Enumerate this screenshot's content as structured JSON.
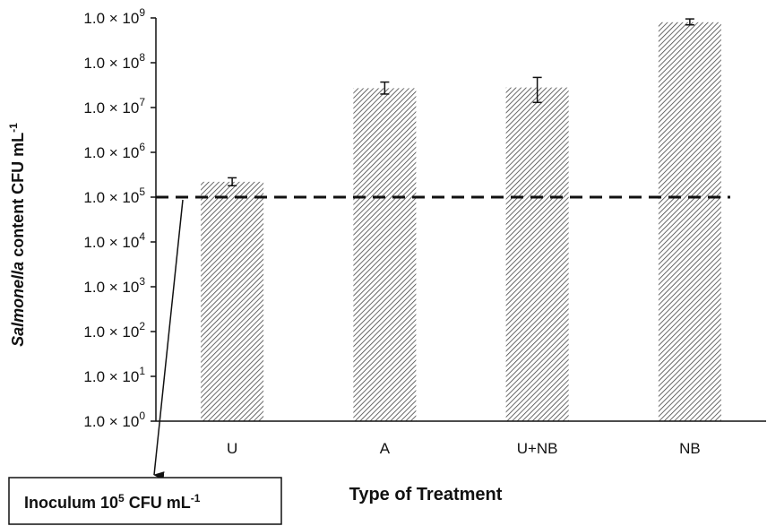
{
  "chart_data": {
    "type": "bar",
    "categories": [
      "U",
      "A",
      "U+NB",
      "NB"
    ],
    "values": [
      220000,
      27000000,
      28000000,
      800000000
    ],
    "error_low": [
      180000,
      20000000,
      13000000,
      700000000
    ],
    "error_high": [
      270000,
      37000000,
      47000000,
      950000000
    ],
    "y_scale": "log",
    "ylim": [
      1,
      1000000000
    ],
    "y_tick_values": [
      1,
      10,
      100,
      1000,
      10000,
      100000,
      1000000,
      10000000,
      100000000,
      1000000000
    ],
    "y_tick_labels": [
      {
        "base": "1.0 × 10",
        "exp": "0"
      },
      {
        "base": "1.0 × 10",
        "exp": "1"
      },
      {
        "base": "1.0 × 10",
        "exp": "2"
      },
      {
        "base": "1.0 × 10",
        "exp": "3"
      },
      {
        "base": "1.0 × 10",
        "exp": "4"
      },
      {
        "base": "1.0 × 10",
        "exp": "5"
      },
      {
        "base": "1.0 × 10",
        "exp": "6"
      },
      {
        "base": "1.0 × 10",
        "exp": "7"
      },
      {
        "base": "1.0 × 10",
        "exp": "8"
      },
      {
        "base": "1.0 × 10",
        "exp": "9"
      }
    ],
    "ylabel": {
      "italic": "Salmonella",
      "rest": " content CFU mL",
      "sup": "-1"
    },
    "xlabel": "Type of Treatment",
    "reference_line": {
      "value": 100000,
      "style": "dashed"
    },
    "annotation": {
      "pre": "Inoculum 10",
      "sup1": "5",
      "mid": " CFU mL",
      "sup2": "-1"
    },
    "bar_fill": "hatched",
    "grid": false,
    "legend": "none"
  },
  "colors": {
    "ink": "#111111",
    "hatch": "#555555",
    "background": "#ffffff"
  }
}
